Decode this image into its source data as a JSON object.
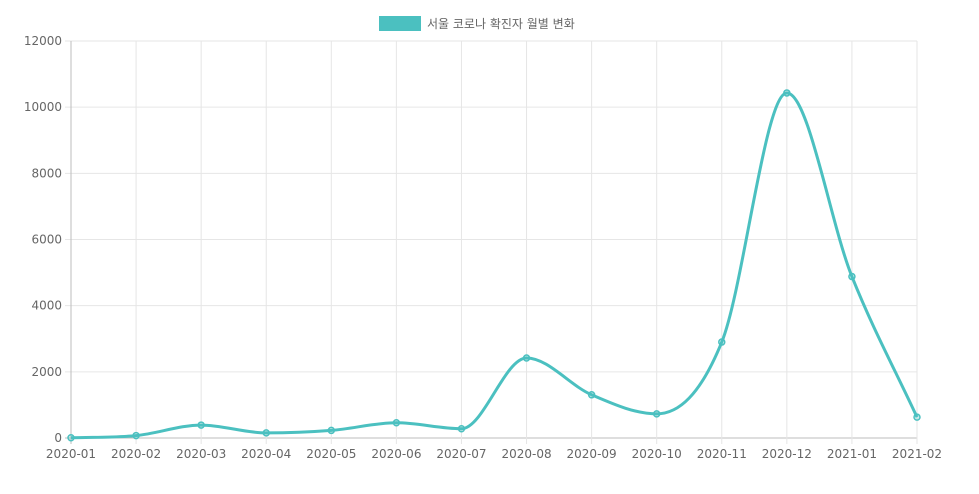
{
  "chart_data": {
    "type": "line",
    "title": "",
    "xlabel": "",
    "ylabel": "",
    "categories": [
      "2020-01",
      "2020-02",
      "2020-03",
      "2020-04",
      "2020-05",
      "2020-06",
      "2020-07",
      "2020-08",
      "2020-09",
      "2020-10",
      "2020-11",
      "2020-12",
      "2021-01",
      "2021-02"
    ],
    "series": [
      {
        "name": "서울 코로나 확진자 월별 변화",
        "values": [
          7,
          73,
          391,
          154,
          229,
          460,
          280,
          2418,
          1306,
          730,
          2900,
          10430,
          4880,
          630
        ],
        "color": "#4bc0c0"
      }
    ],
    "ylim": [
      0,
      12000
    ],
    "yticks": [
      0,
      2000,
      4000,
      6000,
      8000,
      10000,
      12000
    ],
    "grid": true,
    "legend": "top-center"
  }
}
